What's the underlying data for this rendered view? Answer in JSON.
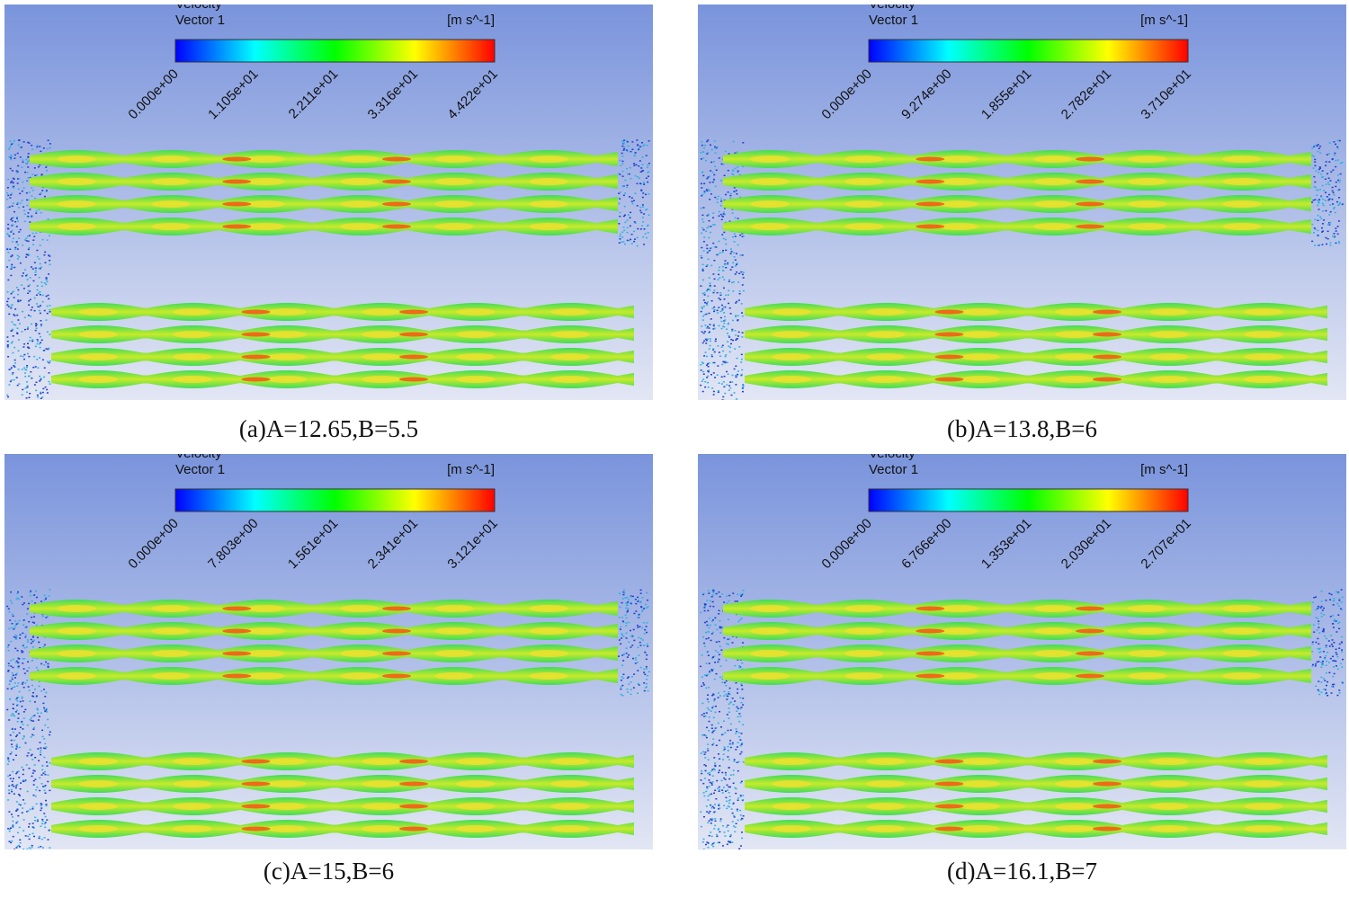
{
  "panels": [
    {
      "legend": {
        "title": "Velocity",
        "subtitle": "Vector 1",
        "unit": "[m s^-1]",
        "ticks": [
          "0.000e+00",
          "1.105e+01",
          "2.211e+01",
          "3.316e+01",
          "4.422e+01"
        ]
      },
      "caption": "(a)A=12.65,B=5.5"
    },
    {
      "legend": {
        "title": "Velocity",
        "subtitle": "Vector 1",
        "unit": "[m s^-1]",
        "ticks": [
          "0.000e+00",
          "9.274e+00",
          "1.855e+01",
          "2.782e+01",
          "3.710e+01"
        ]
      },
      "caption": "(b)A=13.8,B=6"
    },
    {
      "legend": {
        "title": "Velocity",
        "subtitle": "Vector 1",
        "unit": "[m s^-1]",
        "ticks": [
          "0.000e+00",
          "7.803e+00",
          "1.561e+01",
          "2.341e+01",
          "3.121e+01"
        ]
      },
      "caption": "(c)A=15,B=6"
    },
    {
      "legend": {
        "title": "Velocity",
        "subtitle": "Vector 1",
        "unit": "[m s^-1]",
        "ticks": [
          "0.000e+00",
          "6.766e+00",
          "1.353e+01",
          "2.030e+01",
          "2.707e+01"
        ]
      },
      "caption": "(d)A=16.1,B=7"
    }
  ]
}
